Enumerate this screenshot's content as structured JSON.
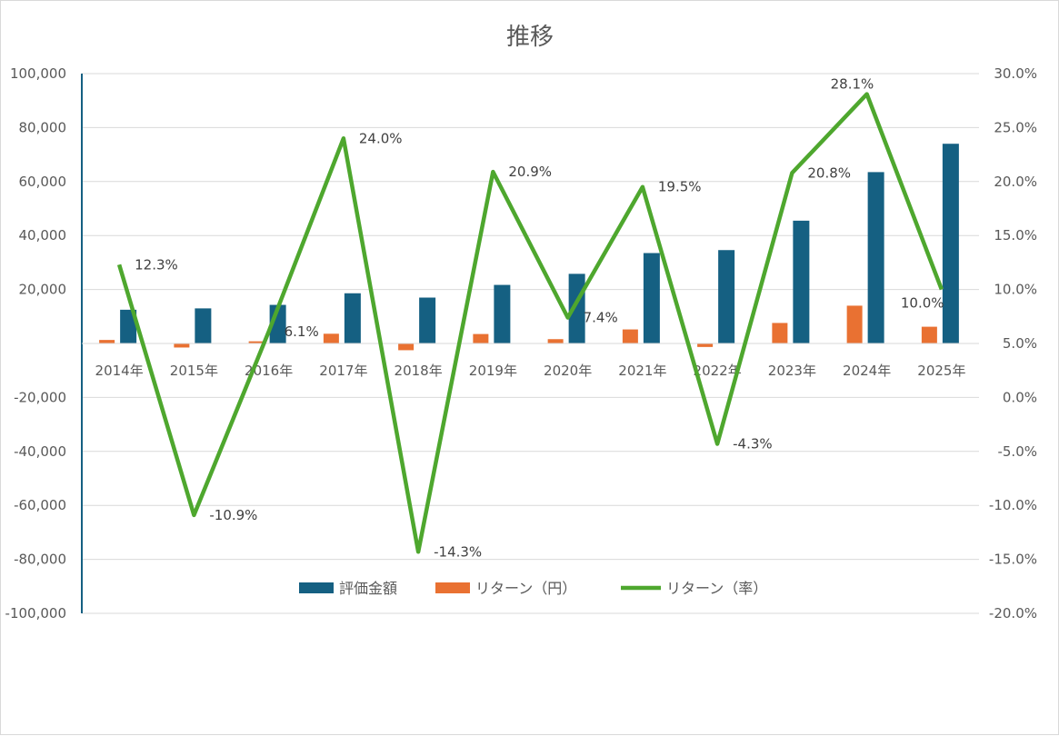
{
  "chart_data": {
    "type": "bar+line",
    "title": "推移",
    "categories": [
      "2014年",
      "2015年",
      "2016年",
      "2017年",
      "2018年",
      "2019年",
      "2020年",
      "2021年",
      "2022年",
      "2023年",
      "2024年",
      "2025年"
    ],
    "series": [
      {
        "name": "評価金額",
        "type": "bar",
        "axis": "left",
        "color": "#156082",
        "values": [
          12500,
          13000,
          14300,
          18600,
          17000,
          21700,
          25800,
          33500,
          34600,
          45500,
          63500,
          74000
        ]
      },
      {
        "name": "リターン（円）",
        "type": "bar",
        "axis": "left",
        "color": "#E97132",
        "values": [
          1300,
          -1500,
          800,
          3600,
          -2500,
          3500,
          1600,
          5200,
          -1300,
          7600,
          14000,
          6200
        ]
      },
      {
        "name": "リターン（率）",
        "type": "line",
        "axis": "right",
        "color": "#4EA72E",
        "values": [
          12.3,
          -10.9,
          6.1,
          24.0,
          -14.3,
          20.9,
          7.4,
          19.5,
          -4.3,
          20.8,
          28.1,
          10.0
        ],
        "labels": [
          "12.3%",
          "-10.9%",
          "6.1%",
          "24.0%",
          "-14.3%",
          "20.9%",
          "7.4%",
          "19.5%",
          "-4.3%",
          "20.8%",
          "28.1%",
          "10.0%"
        ]
      }
    ],
    "y_left": {
      "min": -100000,
      "max": 100000,
      "step": 20000,
      "ticks": [
        "100,000",
        "80,000",
        "60,000",
        "40,000",
        "20,000",
        "",
        "-20,000",
        "-40,000",
        "-60,000",
        "-80,000",
        "-100,000"
      ]
    },
    "y_right": {
      "min": -20,
      "max": 30,
      "step": 5,
      "ticks": [
        "30.0%",
        "25.0%",
        "20.0%",
        "15.0%",
        "10.0%",
        "5.0%",
        "0.0%",
        "-5.0%",
        "-10.0%",
        "-15.0%",
        "-20.0%"
      ]
    },
    "grid": true,
    "legend": "bottom-inside"
  }
}
